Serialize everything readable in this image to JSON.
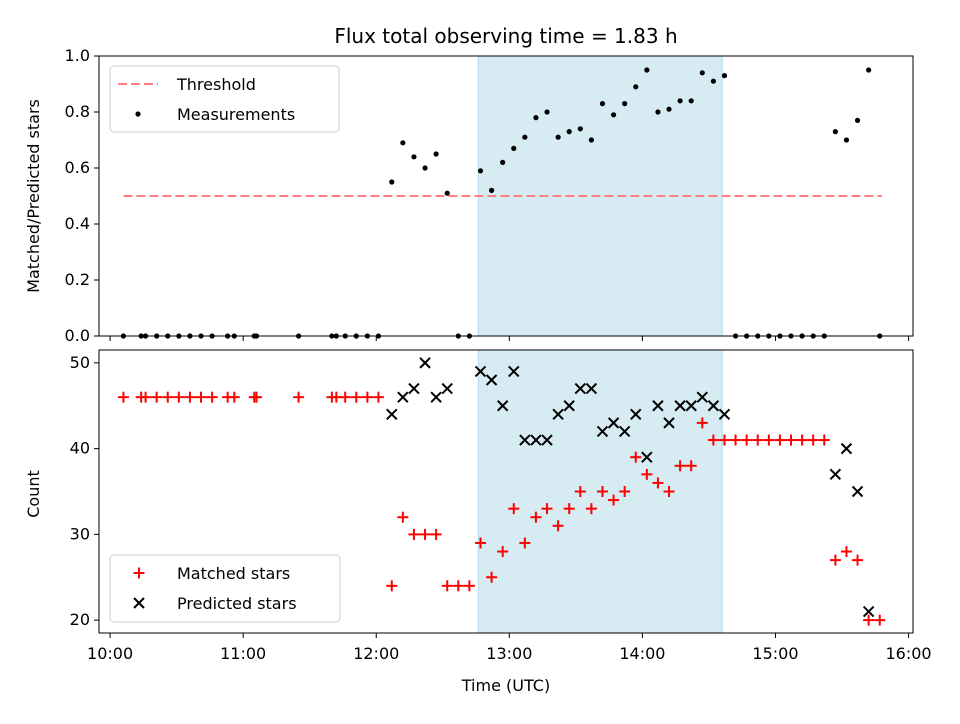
{
  "chart_data": [
    {
      "type": "scatter",
      "title": "Flux total observing time = 1.83 h",
      "ylabel": "Matched/Predicted stars",
      "xlim": [
        "09:55",
        "16:02"
      ],
      "ylim": [
        0,
        1
      ],
      "yticks": [
        "0.0",
        "0.2",
        "0.4",
        "0.6",
        "0.8",
        "1.0"
      ],
      "highlight_span": [
        "12:46",
        "14:36"
      ],
      "highlight_color": "#add8e6",
      "legend_position": "upper-left",
      "threshold": {
        "name": "Threshold",
        "value": 0.5,
        "x_range": [
          "10:06",
          "15:48"
        ],
        "color": "#ff7f7f"
      },
      "series": [
        {
          "name": "Measurements",
          "color": "#000000",
          "points": [
            [
              "10:06",
              0
            ],
            [
              "10:14",
              0
            ],
            [
              "10:16",
              0
            ],
            [
              "10:21",
              0
            ],
            [
              "10:26",
              0
            ],
            [
              "10:31",
              0
            ],
            [
              "10:36",
              0
            ],
            [
              "10:41",
              0
            ],
            [
              "10:46",
              0
            ],
            [
              "10:53",
              0
            ],
            [
              "10:56",
              0
            ],
            [
              "11:05",
              0
            ],
            [
              "11:06",
              0
            ],
            [
              "11:25",
              0
            ],
            [
              "11:40",
              0
            ],
            [
              "11:42",
              0
            ],
            [
              "11:46",
              0
            ],
            [
              "11:51",
              0
            ],
            [
              "11:56",
              0
            ],
            [
              "12:01",
              0
            ],
            [
              "12:07",
              0.55
            ],
            [
              "12:12",
              0.69
            ],
            [
              "12:17",
              0.64
            ],
            [
              "12:22",
              0.6
            ],
            [
              "12:27",
              0.65
            ],
            [
              "12:32",
              0.51
            ],
            [
              "12:37",
              0
            ],
            [
              "12:42",
              0
            ],
            [
              "12:47",
              0.59
            ],
            [
              "12:52",
              0.52
            ],
            [
              "12:57",
              0.62
            ],
            [
              "13:02",
              0.67
            ],
            [
              "13:07",
              0.71
            ],
            [
              "13:12",
              0.78
            ],
            [
              "13:17",
              0.8
            ],
            [
              "13:22",
              0.71
            ],
            [
              "13:27",
              0.73
            ],
            [
              "13:32",
              0.74
            ],
            [
              "13:37",
              0.7
            ],
            [
              "13:42",
              0.83
            ],
            [
              "13:47",
              0.79
            ],
            [
              "13:52",
              0.83
            ],
            [
              "13:57",
              0.89
            ],
            [
              "14:02",
              0.95
            ],
            [
              "14:07",
              0.8
            ],
            [
              "14:12",
              0.81
            ],
            [
              "14:17",
              0.84
            ],
            [
              "14:22",
              0.84
            ],
            [
              "14:27",
              0.94
            ],
            [
              "14:32",
              0.91
            ],
            [
              "14:37",
              0.93
            ],
            [
              "14:42",
              0
            ],
            [
              "14:47",
              0
            ],
            [
              "14:52",
              0
            ],
            [
              "14:57",
              0
            ],
            [
              "15:02",
              0
            ],
            [
              "15:07",
              0
            ],
            [
              "15:12",
              0
            ],
            [
              "15:17",
              0
            ],
            [
              "15:22",
              0
            ],
            [
              "15:27",
              0.73
            ],
            [
              "15:32",
              0.7
            ],
            [
              "15:37",
              0.77
            ],
            [
              "15:42",
              0.95
            ],
            [
              "15:47",
              0
            ]
          ]
        }
      ]
    },
    {
      "type": "scatter",
      "xlabel": "Time (UTC)",
      "ylabel": "Count",
      "xlim": [
        "09:55",
        "16:02"
      ],
      "ylim": [
        18.5,
        51.5
      ],
      "yticks": [
        "20",
        "30",
        "40",
        "50"
      ],
      "xticks": [
        "10:00",
        "11:00",
        "12:00",
        "13:00",
        "14:00",
        "15:00",
        "16:00"
      ],
      "highlight_span": [
        "12:46",
        "14:36"
      ],
      "highlight_color": "#add8e6",
      "legend_position": "lower-left",
      "series": [
        {
          "name": "Matched stars",
          "marker": "plus",
          "color": "#ff0000",
          "points": [
            [
              "10:06",
              46
            ],
            [
              "10:14",
              46
            ],
            [
              "10:16",
              46
            ],
            [
              "10:21",
              46
            ],
            [
              "10:26",
              46
            ],
            [
              "10:31",
              46
            ],
            [
              "10:36",
              46
            ],
            [
              "10:41",
              46
            ],
            [
              "10:46",
              46
            ],
            [
              "10:53",
              46
            ],
            [
              "10:56",
              46
            ],
            [
              "11:05",
              46
            ],
            [
              "11:06",
              46
            ],
            [
              "11:25",
              46
            ],
            [
              "11:40",
              46
            ],
            [
              "11:42",
              46
            ],
            [
              "11:46",
              46
            ],
            [
              "11:51",
              46
            ],
            [
              "11:56",
              46
            ],
            [
              "12:01",
              46
            ],
            [
              "12:07",
              24
            ],
            [
              "12:12",
              32
            ],
            [
              "12:17",
              30
            ],
            [
              "12:22",
              30
            ],
            [
              "12:27",
              30
            ],
            [
              "12:32",
              24
            ],
            [
              "12:37",
              24
            ],
            [
              "12:42",
              24
            ],
            [
              "12:47",
              29
            ],
            [
              "12:52",
              25
            ],
            [
              "12:57",
              28
            ],
            [
              "13:02",
              33
            ],
            [
              "13:07",
              29
            ],
            [
              "13:12",
              32
            ],
            [
              "13:17",
              33
            ],
            [
              "13:22",
              31
            ],
            [
              "13:27",
              33
            ],
            [
              "13:32",
              35
            ],
            [
              "13:37",
              33
            ],
            [
              "13:42",
              35
            ],
            [
              "13:47",
              34
            ],
            [
              "13:52",
              35
            ],
            [
              "13:57",
              39
            ],
            [
              "14:02",
              37
            ],
            [
              "14:07",
              36
            ],
            [
              "14:12",
              35
            ],
            [
              "14:17",
              38
            ],
            [
              "14:22",
              38
            ],
            [
              "14:27",
              43
            ],
            [
              "14:32",
              41
            ],
            [
              "14:37",
              41
            ],
            [
              "14:42",
              41
            ],
            [
              "14:47",
              41
            ],
            [
              "14:52",
              41
            ],
            [
              "14:57",
              41
            ],
            [
              "15:02",
              41
            ],
            [
              "15:07",
              41
            ],
            [
              "15:12",
              41
            ],
            [
              "15:17",
              41
            ],
            [
              "15:22",
              41
            ],
            [
              "15:27",
              27
            ],
            [
              "15:32",
              28
            ],
            [
              "15:37",
              27
            ],
            [
              "15:42",
              20
            ],
            [
              "15:47",
              20
            ]
          ]
        },
        {
          "name": "Predicted stars",
          "marker": "x",
          "color": "#000000",
          "points": [
            [
              "12:07",
              44
            ],
            [
              "12:12",
              46
            ],
            [
              "12:17",
              47
            ],
            [
              "12:22",
              50
            ],
            [
              "12:27",
              46
            ],
            [
              "12:32",
              47
            ],
            [
              "12:47",
              49
            ],
            [
              "12:52",
              48
            ],
            [
              "12:57",
              45
            ],
            [
              "13:02",
              49
            ],
            [
              "13:07",
              41
            ],
            [
              "13:12",
              41
            ],
            [
              "13:17",
              41
            ],
            [
              "13:22",
              44
            ],
            [
              "13:27",
              45
            ],
            [
              "13:32",
              47
            ],
            [
              "13:37",
              47
            ],
            [
              "13:42",
              42
            ],
            [
              "13:47",
              43
            ],
            [
              "13:52",
              42
            ],
            [
              "13:57",
              44
            ],
            [
              "14:02",
              39
            ],
            [
              "14:07",
              45
            ],
            [
              "14:12",
              43
            ],
            [
              "14:17",
              45
            ],
            [
              "14:22",
              45
            ],
            [
              "14:27",
              46
            ],
            [
              "14:32",
              45
            ],
            [
              "14:37",
              44
            ],
            [
              "15:27",
              37
            ],
            [
              "15:32",
              40
            ],
            [
              "15:37",
              35
            ],
            [
              "15:42",
              21
            ]
          ]
        }
      ]
    }
  ]
}
